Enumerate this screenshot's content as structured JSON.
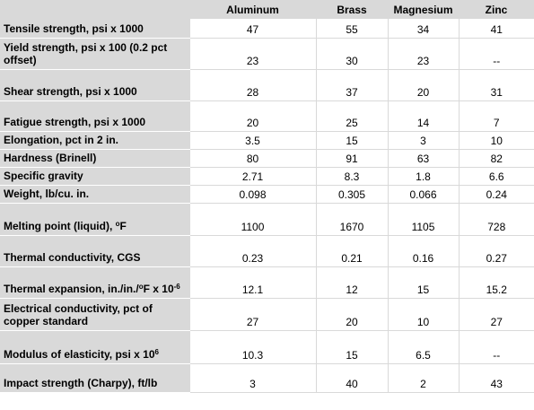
{
  "headers": [
    "",
    "Aluminum",
    "Brass",
    "Magnesium",
    "Zinc"
  ],
  "rows": [
    {
      "label": "Tensile strength, psi x 1000",
      "values": [
        "47",
        "55",
        "34",
        "41"
      ]
    },
    {
      "label": "Yield strength, psi x 100 (0.2 pct offset)",
      "values": [
        "23",
        "30",
        "23",
        "--"
      ]
    },
    {
      "label": "Shear strength, psi x 1000",
      "values": [
        "28",
        "37",
        "20",
        "31"
      ]
    },
    {
      "label": "Fatigue strength, psi x 1000",
      "values": [
        "20",
        "25",
        "14",
        "7"
      ]
    },
    {
      "label": "Elongation, pct in 2 in.",
      "values": [
        "3.5",
        "15",
        "3",
        "10"
      ]
    },
    {
      "label": "Hardness (Brinell)",
      "values": [
        "80",
        "91",
        "63",
        "82"
      ]
    },
    {
      "label": "Specific gravity",
      "values": [
        "2.71",
        "8.3",
        "1.8",
        "6.6"
      ]
    },
    {
      "label": "Weight, lb/cu. in.",
      "values": [
        "0.098",
        "0.305",
        "0.066",
        "0.24"
      ]
    },
    {
      "label": "Melting point (liquid), ",
      "label_sup": "o",
      "label_after": "F",
      "values": [
        "1100",
        "1670",
        "1105",
        "728"
      ]
    },
    {
      "label": "Thermal conductivity, CGS",
      "values": [
        "0.23",
        "0.21",
        "0.16",
        "0.27"
      ]
    },
    {
      "label": "Thermal expansion, in./in./",
      "label_sup": "o",
      "label_after": "F x 10",
      "label_sup2": "-6",
      "values": [
        "12.1",
        "12",
        "15",
        "15.2"
      ]
    },
    {
      "label": "Electrical conductivity, pct of copper standard",
      "values": [
        "27",
        "20",
        "10",
        "27"
      ]
    },
    {
      "label": "Modulus of elasticity, psi x 10",
      "label_sup": "6",
      "values": [
        "10.3",
        "15",
        "6.5",
        "--"
      ]
    },
    {
      "label": "Impact strength (Charpy), ft/lb",
      "values": [
        "3",
        "40",
        "2",
        "43"
      ]
    }
  ]
}
